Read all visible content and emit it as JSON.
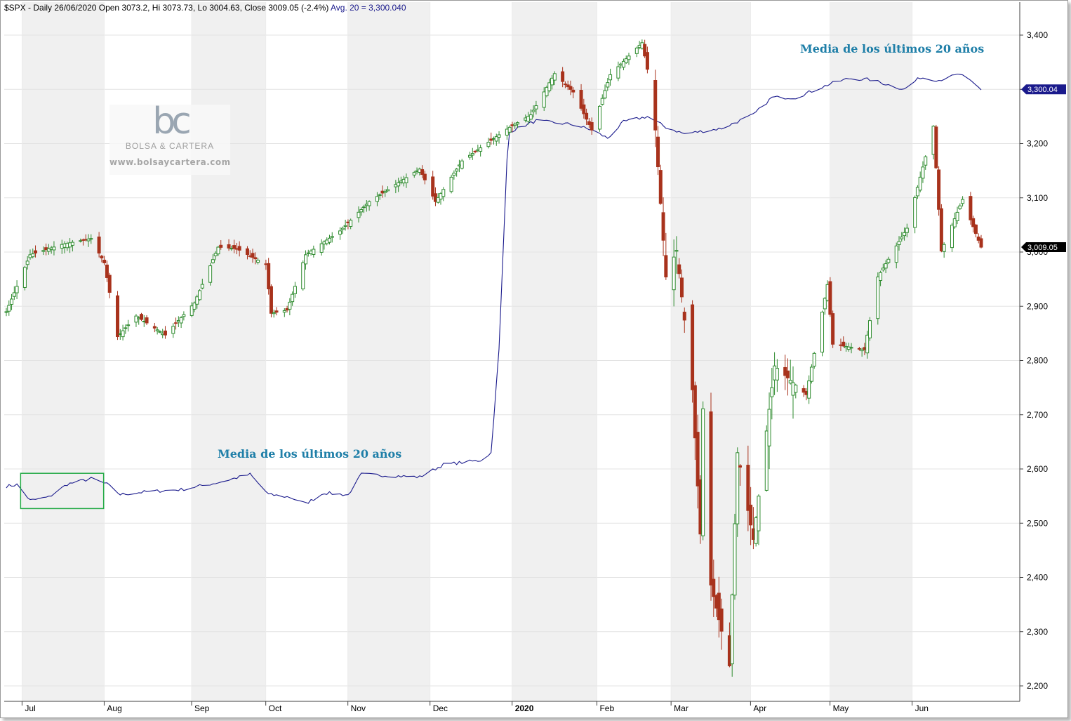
{
  "header": {
    "prefix": "$SPX - Daily 26/06/2020 Open 3073.2, Hi 3073.73, Lo 3004.63, Close 3009.05 (-2.4%)",
    "avg": "Avg. 20 = 3,300.040"
  },
  "logo": {
    "mark": "bc",
    "brand": "BOLSA & CARTERA",
    "url": "www.bolsaycartera.com"
  },
  "annotations": [
    {
      "text": "Media de los últimos 20 años"
    },
    {
      "text": "Media de los últimos 20 años"
    }
  ],
  "colors": {
    "up": "#2e8b2e",
    "down": "#a8321c",
    "avg_line": "#1a1a8c",
    "box": "#22aa44",
    "band": "#f0f0f0",
    "grid": "#e3e3e3",
    "annotation": "#1f7fa8"
  },
  "chart_data": {
    "type": "candlestick",
    "symbol": "$SPX",
    "period": "Daily",
    "y_axis": {
      "ticks": [
        2200,
        2300,
        2400,
        2500,
        2600,
        2700,
        2800,
        2900,
        3000,
        3100,
        3200,
        3300,
        3400
      ],
      "tick_labels": [
        "2,200",
        "2,300",
        "2,400",
        "2,500",
        "2,600",
        "2,700",
        "2,800",
        "2,900",
        "3,000",
        "3,100",
        "3,200",
        "3,300",
        "3,400"
      ],
      "range": [
        2175,
        3455
      ]
    },
    "x_axis": {
      "start": "2019-06-24",
      "end": "2020-06-26",
      "ticks": [
        {
          "date": "2019-07-01",
          "label": "Jul"
        },
        {
          "date": "2019-08-01",
          "label": "Aug"
        },
        {
          "date": "2019-09-03",
          "label": "Sep"
        },
        {
          "date": "2019-10-01",
          "label": "Oct"
        },
        {
          "date": "2019-11-01",
          "label": "Nov"
        },
        {
          "date": "2019-12-02",
          "label": "Dec"
        },
        {
          "date": "2020-01-02",
          "label": "2020",
          "bold": true
        },
        {
          "date": "2020-02-03",
          "label": "Feb"
        },
        {
          "date": "2020-03-02",
          "label": "Mar"
        },
        {
          "date": "2020-04-01",
          "label": "Apr"
        },
        {
          "date": "2020-05-01",
          "label": "May"
        },
        {
          "date": "2020-06-01",
          "label": "Jun"
        }
      ]
    },
    "last_close": {
      "value": 3009.05,
      "label": "3,009.05"
    },
    "avg_last": {
      "value": 3300.04,
      "label": "3,300.04"
    },
    "close_anchors": [
      [
        "2019-06-24",
        2890
      ],
      [
        "2019-07-03",
        2995
      ],
      [
        "2019-07-15",
        3014
      ],
      [
        "2019-07-26",
        3025
      ],
      [
        "2019-07-31",
        2980
      ],
      [
        "2019-08-05",
        2844
      ],
      [
        "2019-08-12",
        2882
      ],
      [
        "2019-08-23",
        2847
      ],
      [
        "2019-09-03",
        2906
      ],
      [
        "2019-09-12",
        3009
      ],
      [
        "2019-09-19",
        3006
      ],
      [
        "2019-09-30",
        2977
      ],
      [
        "2019-10-02",
        2887
      ],
      [
        "2019-10-08",
        2893
      ],
      [
        "2019-10-15",
        2995
      ],
      [
        "2019-10-28",
        3039
      ],
      [
        "2019-11-08",
        3093
      ],
      [
        "2019-11-27",
        3153
      ],
      [
        "2019-12-03",
        3093
      ],
      [
        "2019-12-13",
        3168
      ],
      [
        "2019-12-31",
        3230
      ],
      [
        "2020-01-08",
        3253
      ],
      [
        "2020-01-17",
        3329
      ],
      [
        "2020-01-24",
        3295
      ],
      [
        "2020-01-31",
        3225
      ],
      [
        "2020-02-07",
        3327
      ],
      [
        "2020-02-19",
        3386
      ],
      [
        "2020-02-21",
        3337
      ],
      [
        "2020-02-24",
        3225
      ],
      [
        "2020-02-28",
        2954
      ],
      [
        "2020-03-03",
        3003
      ],
      [
        "2020-03-09",
        2746
      ],
      [
        "2020-03-12",
        2480
      ],
      [
        "2020-03-13",
        2711
      ],
      [
        "2020-03-16",
        2386
      ],
      [
        "2020-03-23",
        2237
      ],
      [
        "2020-03-26",
        2630
      ],
      [
        "2020-04-01",
        2470
      ],
      [
        "2020-04-09",
        2790
      ],
      [
        "2020-04-21",
        2737
      ],
      [
        "2020-04-29",
        2940
      ],
      [
        "2020-05-01",
        2830
      ],
      [
        "2020-05-13",
        2820
      ],
      [
        "2020-05-18",
        2954
      ],
      [
        "2020-05-29",
        3044
      ],
      [
        "2020-06-08",
        3232
      ],
      [
        "2020-06-11",
        3002
      ],
      [
        "2020-06-19",
        3097
      ],
      [
        "2020-06-26",
        3009
      ]
    ],
    "avg_anchors": [
      [
        "2019-06-24",
        2568
      ],
      [
        "2019-06-28",
        2571
      ],
      [
        "2019-07-03",
        2542
      ],
      [
        "2019-07-10",
        2548
      ],
      [
        "2019-07-17",
        2572
      ],
      [
        "2019-07-26",
        2582
      ],
      [
        "2019-08-01",
        2572
      ],
      [
        "2019-08-06",
        2553
      ],
      [
        "2019-08-16",
        2558
      ],
      [
        "2019-08-29",
        2562
      ],
      [
        "2019-09-12",
        2575
      ],
      [
        "2019-09-24",
        2590
      ],
      [
        "2019-10-01",
        2553
      ],
      [
        "2019-10-09",
        2548
      ],
      [
        "2019-10-15",
        2536
      ],
      [
        "2019-10-22",
        2556
      ],
      [
        "2019-10-31",
        2552
      ],
      [
        "2019-11-05",
        2590
      ],
      [
        "2019-11-15",
        2588
      ],
      [
        "2019-11-27",
        2585
      ],
      [
        "2019-12-06",
        2608
      ],
      [
        "2019-12-20",
        2616
      ],
      [
        "2019-12-24",
        2630
      ],
      [
        "2019-12-27",
        2820
      ],
      [
        "2019-12-30",
        3170
      ],
      [
        "2019-12-31",
        3222
      ],
      [
        "2020-01-10",
        3242
      ],
      [
        "2020-01-24",
        3235
      ],
      [
        "2020-01-31",
        3225
      ],
      [
        "2020-02-06",
        3210
      ],
      [
        "2020-02-12",
        3240
      ],
      [
        "2020-02-21",
        3250
      ],
      [
        "2020-02-28",
        3230
      ],
      [
        "2020-03-06",
        3218
      ],
      [
        "2020-03-20",
        3228
      ],
      [
        "2020-04-01",
        3253
      ],
      [
        "2020-04-08",
        3285
      ],
      [
        "2020-04-17",
        3285
      ],
      [
        "2020-04-30",
        3310
      ],
      [
        "2020-05-07",
        3320
      ],
      [
        "2020-05-15",
        3318
      ],
      [
        "2020-05-28",
        3300
      ],
      [
        "2020-06-03",
        3322
      ],
      [
        "2020-06-10",
        3317
      ],
      [
        "2020-06-18",
        3328
      ],
      [
        "2020-06-26",
        3300
      ]
    ],
    "highlight_box": {
      "x_start": "2019-07-01",
      "x_end": "2019-07-31",
      "y_low": 2527,
      "y_high": 2592
    }
  }
}
